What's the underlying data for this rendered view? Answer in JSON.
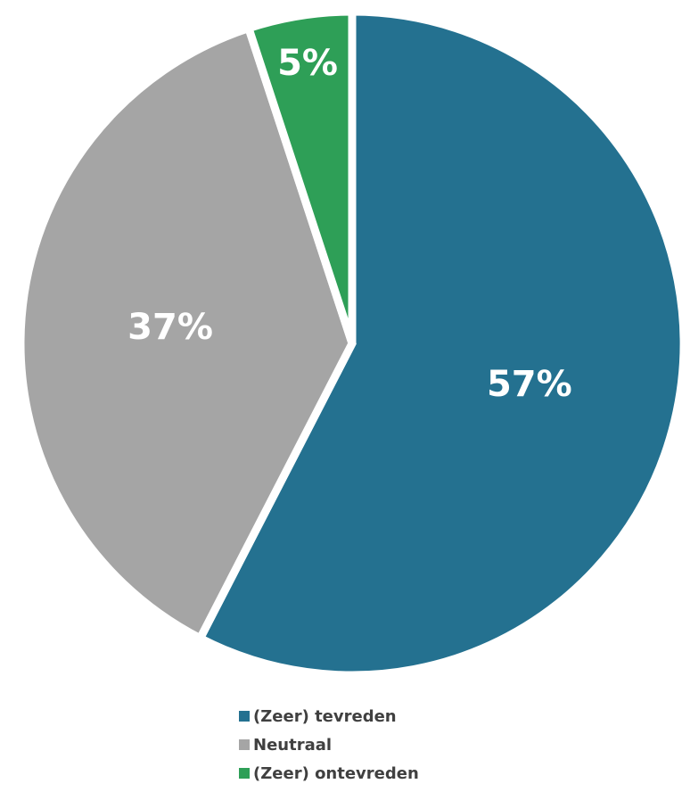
{
  "chart_data": {
    "type": "pie",
    "categories": [
      "(Zeer) tevreden",
      "Neutraal",
      "(Zeer) ontevreden"
    ],
    "values": [
      57,
      37,
      5
    ],
    "value_labels": [
      "57%",
      "37%",
      "5%"
    ],
    "colors": [
      "#247190",
      "#a5a5a5",
      "#2e9f57"
    ]
  }
}
